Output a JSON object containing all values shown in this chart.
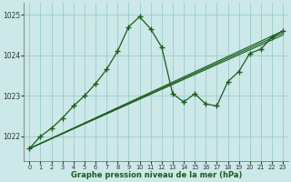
{
  "background_color": "#cce8e8",
  "grid_color": "#99cccc",
  "line_color": "#1a5c1a",
  "title": "Graphe pression niveau de la mer (hPa)",
  "xlim": [
    -0.5,
    23.5
  ],
  "ylim": [
    1021.4,
    1025.3
  ],
  "yticks": [
    1022,
    1023,
    1024,
    1025
  ],
  "xticks": [
    0,
    1,
    2,
    3,
    4,
    5,
    6,
    7,
    8,
    9,
    10,
    11,
    12,
    13,
    14,
    15,
    16,
    17,
    18,
    19,
    20,
    21,
    22,
    23
  ],
  "main_series": {
    "x": [
      0,
      1,
      2,
      3,
      4,
      5,
      6,
      7,
      8,
      9,
      10,
      11,
      12,
      13,
      14,
      15,
      16,
      17,
      18,
      19,
      20,
      21,
      22,
      23
    ],
    "y": [
      1021.7,
      1022.0,
      1022.2,
      1022.45,
      1022.75,
      1023.0,
      1023.3,
      1023.65,
      1024.1,
      1024.7,
      1024.95,
      1024.65,
      1024.2,
      1023.05,
      1022.85,
      1023.05,
      1022.8,
      1022.75,
      1023.35,
      1023.6,
      1024.05,
      1024.15,
      1024.45,
      1024.6
    ]
  },
  "diagonal_lines": [
    {
      "x": [
        0,
        23
      ],
      "y": [
        1021.7,
        1024.6
      ]
    },
    {
      "x": [
        0,
        23
      ],
      "y": [
        1021.7,
        1024.55
      ]
    },
    {
      "x": [
        0,
        23
      ],
      "y": [
        1021.7,
        1024.5
      ]
    }
  ]
}
